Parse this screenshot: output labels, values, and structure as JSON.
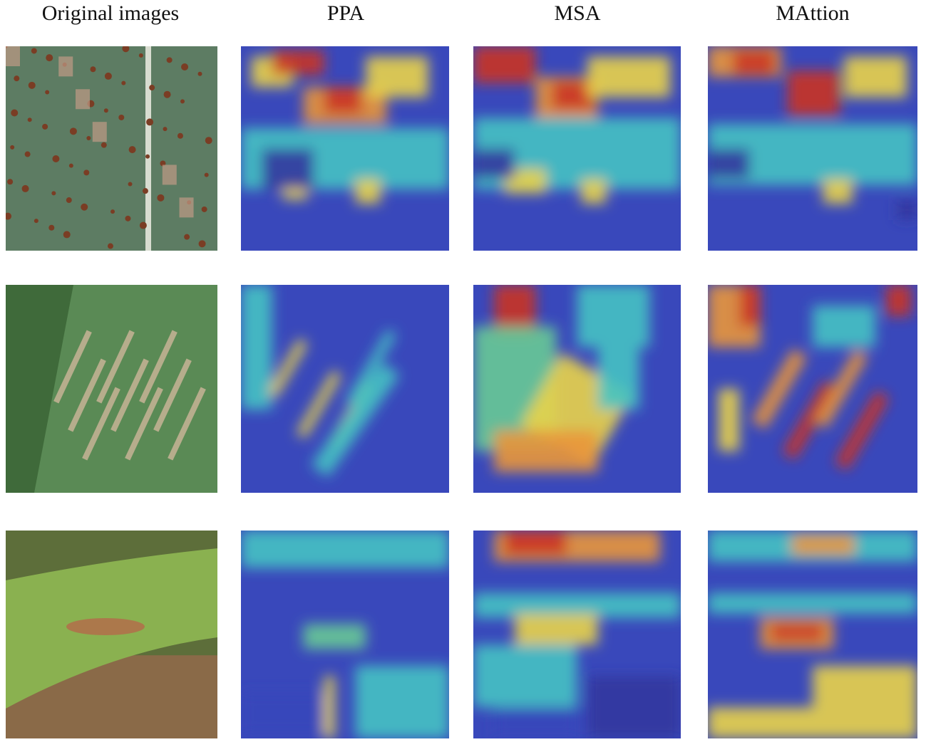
{
  "columns": [
    "Original images",
    "PPA",
    "MSA",
    "MAttion"
  ]
}
